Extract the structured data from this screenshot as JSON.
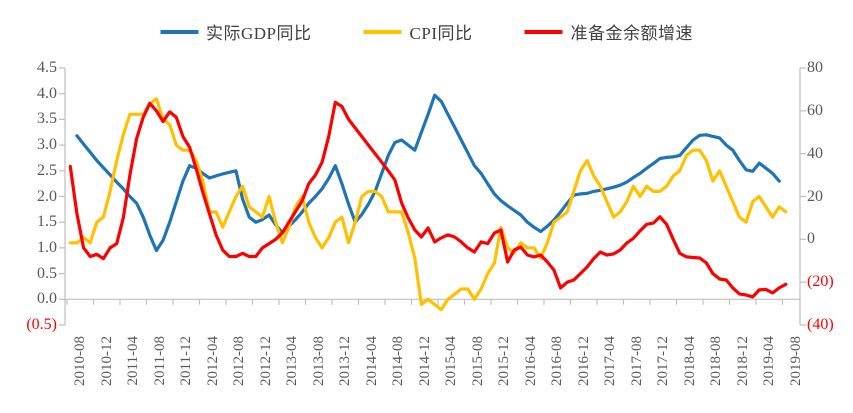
{
  "chart_data": {
    "type": "line",
    "title": "",
    "legend_position": "top",
    "grid": false,
    "x_frequency": "monthly",
    "x_start": "2010-08",
    "x_end": "2019-08",
    "x_tick_labels": [
      "2010-08",
      "2010-12",
      "2011-04",
      "2011-08",
      "2011-12",
      "2012-04",
      "2012-08",
      "2012-12",
      "2013-04",
      "2013-08",
      "2013-12",
      "2014-04",
      "2014-08",
      "2014-12",
      "2015-04",
      "2015-08",
      "2015-12",
      "2016-04",
      "2016-08",
      "2016-12",
      "2017-04",
      "2017-08",
      "2017-12",
      "2018-04",
      "2018-08",
      "2018-12",
      "2019-04",
      "2019-08"
    ],
    "left_axis": {
      "min": -0.5,
      "max": 4.5,
      "tick_step": 0.5,
      "tick_labels": [
        "4.5",
        "4.0",
        "3.5",
        "3.0",
        "2.5",
        "2.0",
        "1.5",
        "1.0",
        "0.5",
        "0.0",
        "(0.5)"
      ]
    },
    "right_axis": {
      "min": -40,
      "max": 80,
      "tick_step": 20,
      "tick_labels": [
        "80",
        "60",
        "40",
        "20",
        "0",
        "(20)",
        "(40)"
      ]
    },
    "x_months": [
      "2010-08",
      "2010-09",
      "2010-10",
      "2010-11",
      "2010-12",
      "2011-01",
      "2011-02",
      "2011-03",
      "2011-04",
      "2011-05",
      "2011-06",
      "2011-07",
      "2011-08",
      "2011-09",
      "2011-10",
      "2011-11",
      "2011-12",
      "2012-01",
      "2012-02",
      "2012-03",
      "2012-04",
      "2012-05",
      "2012-06",
      "2012-07",
      "2012-08",
      "2012-09",
      "2012-10",
      "2012-11",
      "2012-12",
      "2013-01",
      "2013-02",
      "2013-03",
      "2013-04",
      "2013-05",
      "2013-06",
      "2013-07",
      "2013-08",
      "2013-09",
      "2013-10",
      "2013-11",
      "2013-12",
      "2014-01",
      "2014-02",
      "2014-03",
      "2014-04",
      "2014-05",
      "2014-06",
      "2014-07",
      "2014-08",
      "2014-09",
      "2014-10",
      "2014-11",
      "2014-12",
      "2015-01",
      "2015-02",
      "2015-03",
      "2015-04",
      "2015-05",
      "2015-06",
      "2015-07",
      "2015-08",
      "2015-09",
      "2015-10",
      "2015-11",
      "2015-12",
      "2016-01",
      "2016-02",
      "2016-03",
      "2016-04",
      "2016-05",
      "2016-06",
      "2016-07",
      "2016-08",
      "2016-09",
      "2016-10",
      "2016-11",
      "2016-12",
      "2017-01",
      "2017-02",
      "2017-03",
      "2017-04",
      "2017-05",
      "2017-06",
      "2017-07",
      "2017-08",
      "2017-09",
      "2017-10",
      "2017-11",
      "2017-12",
      "2018-01",
      "2018-02",
      "2018-03",
      "2018-04",
      "2018-05",
      "2018-06",
      "2018-07",
      "2018-08",
      "2018-09",
      "2018-10",
      "2018-11",
      "2018-12",
      "2019-01",
      "2019-02",
      "2019-03",
      "2019-04",
      "2019-05",
      "2019-06",
      "2019-07",
      "2019-08"
    ],
    "series": [
      {
        "key": "gdp",
        "name": "实际GDP同比",
        "color": "#1F74B6",
        "axis": "left",
        "values": [
          null,
          3.18,
          3.02,
          2.86,
          2.7,
          2.56,
          2.42,
          2.28,
          2.15,
          2.0,
          1.87,
          1.6,
          1.25,
          0.95,
          1.15,
          1.5,
          1.9,
          2.3,
          2.6,
          2.55,
          2.45,
          2.36,
          2.4,
          2.44,
          2.47,
          2.5,
          1.95,
          1.6,
          1.5,
          1.55,
          1.64,
          1.45,
          1.3,
          1.42,
          1.55,
          1.7,
          1.87,
          2.0,
          2.15,
          2.35,
          2.6,
          2.25,
          1.85,
          1.5,
          1.65,
          1.85,
          2.1,
          2.45,
          2.8,
          3.05,
          3.1,
          3.0,
          2.9,
          3.25,
          3.6,
          3.97,
          3.85,
          3.6,
          3.35,
          3.1,
          2.85,
          2.6,
          2.45,
          2.25,
          2.05,
          1.92,
          1.82,
          1.73,
          1.64,
          1.5,
          1.4,
          1.32,
          1.42,
          1.54,
          1.7,
          1.87,
          2.03,
          2.05,
          2.06,
          2.1,
          2.12,
          2.15,
          2.18,
          2.22,
          2.28,
          2.37,
          2.45,
          2.55,
          2.64,
          2.74,
          2.76,
          2.77,
          2.8,
          2.95,
          3.1,
          3.19,
          3.2,
          3.17,
          3.14,
          3.0,
          2.9,
          2.7,
          2.52,
          2.49,
          2.65,
          2.55,
          2.45,
          2.3,
          null
        ]
      },
      {
        "key": "cpi",
        "name": "CPI同比",
        "color": "#FFC000",
        "axis": "left",
        "values": [
          1.1,
          1.1,
          1.2,
          1.1,
          1.5,
          1.6,
          2.1,
          2.7,
          3.2,
          3.6,
          3.6,
          3.6,
          3.8,
          3.9,
          3.5,
          3.4,
          3.0,
          2.9,
          2.9,
          2.7,
          2.3,
          1.7,
          1.7,
          1.4,
          1.7,
          2.0,
          2.2,
          1.8,
          1.7,
          1.6,
          2.0,
          1.5,
          1.1,
          1.4,
          1.8,
          2.0,
          1.5,
          1.2,
          1.0,
          1.2,
          1.5,
          1.6,
          1.1,
          1.5,
          2.0,
          2.1,
          2.1,
          2.0,
          1.7,
          1.7,
          1.7,
          1.3,
          0.8,
          -0.1,
          0.0,
          -0.1,
          -0.2,
          0.0,
          0.1,
          0.2,
          0.2,
          0.0,
          0.2,
          0.5,
          0.7,
          1.4,
          1.0,
          0.9,
          1.1,
          1.0,
          1.0,
          0.8,
          1.1,
          1.5,
          1.6,
          1.7,
          2.1,
          2.5,
          2.7,
          2.4,
          2.2,
          1.9,
          1.6,
          1.7,
          1.9,
          2.2,
          2.0,
          2.2,
          2.1,
          2.1,
          2.2,
          2.4,
          2.5,
          2.8,
          2.9,
          2.9,
          2.7,
          2.3,
          2.5,
          2.2,
          1.9,
          1.6,
          1.5,
          1.9,
          2.0,
          1.8,
          1.6,
          1.8,
          1.7
        ]
      },
      {
        "key": "reserve",
        "name": "准备金余额增速",
        "color": "#FF0000",
        "axis": "right",
        "values": [
          34,
          12,
          -4,
          -8,
          -7,
          -9,
          -4,
          -2,
          10,
          30,
          47,
          57,
          63.5,
          60,
          55,
          59.5,
          57,
          48,
          43,
          33,
          22,
          12,
          2,
          -5,
          -8,
          -8,
          -6.5,
          -8,
          -8,
          -4,
          -2,
          0,
          3,
          8,
          13,
          18,
          26,
          30,
          36,
          48,
          64,
          62,
          56,
          52,
          48,
          44,
          40,
          36,
          32,
          27.7,
          17,
          10,
          4.4,
          1.1,
          5.3,
          -1.2,
          0.7,
          2.1,
          1.1,
          -1.2,
          -4,
          -5.9,
          -1.2,
          -2,
          2.9,
          4.4,
          -10.6,
          -5,
          -3.6,
          -7.3,
          -8.2,
          -7.3,
          -10.6,
          -14.3,
          -22.7,
          -20,
          -19,
          -16,
          -12.9,
          -9,
          -5.9,
          -7.3,
          -6.8,
          -5,
          -1.7,
          0.5,
          4,
          7,
          7.6,
          10.5,
          7,
          0,
          -6.5,
          -8.2,
          -8.5,
          -8.7,
          -11,
          -16,
          -18.5,
          -19,
          -22.7,
          -25.5,
          -26,
          -26.9,
          -23.6,
          -23.4,
          -25,
          -22.7,
          -21
        ]
      }
    ],
    "styles": {
      "axis_label_color": "#595959",
      "negative_label_color": "#FF0000",
      "axis_line_color": "#BFBFBF",
      "legend_text_color": "#404040",
      "background_color": "#FFFFFF"
    }
  }
}
